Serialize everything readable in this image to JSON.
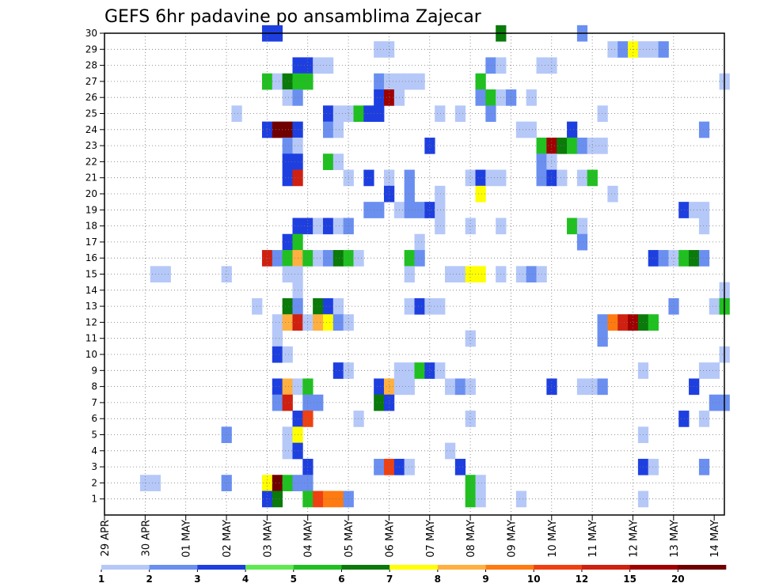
{
  "chart_data": {
    "type": "heatmap",
    "title": "GEFS 6hr padavine po ansamblima Zajecar",
    "x_tick_labels": [
      "29 APR",
      "30 APR",
      "01 MAY",
      "02 MAY",
      "03 MAY",
      "04 MAY",
      "05 MAY",
      "06 MAY",
      "07 MAY",
      "08 MAY",
      "09 MAY",
      "10 MAY",
      "11 MAY",
      "12 MAY",
      "13 MAY",
      "14 MAY"
    ],
    "y_tick_labels": [
      "1",
      "2",
      "3",
      "4",
      "5",
      "6",
      "7",
      "8",
      "9",
      "10",
      "11",
      "12",
      "13",
      "14",
      "15",
      "16",
      "17",
      "18",
      "19",
      "20",
      "21",
      "22",
      "23",
      "24",
      "25",
      "26",
      "27",
      "28",
      "29",
      "30"
    ],
    "x_range": [
      0,
      61
    ],
    "y_range": [
      0,
      30
    ],
    "grid": true,
    "legend": {
      "position": "bottom",
      "labels": [
        "1",
        "2",
        "3",
        "4",
        "5",
        "6",
        "7",
        "8",
        "9",
        "10",
        "12",
        "15",
        "20"
      ],
      "colors": [
        "#b5c8f8",
        "#6a8ff0",
        "#1e3fe0",
        "#60e850",
        "#20c020",
        "#0a7a0a",
        "#ffff00",
        "#ffb040",
        "#ff7a10",
        "#f04010",
        "#d02010",
        "#a00000",
        "#700000"
      ]
    },
    "cells": [
      [
        16,
        30,
        3
      ],
      [
        17,
        30,
        3
      ],
      [
        39,
        30,
        6
      ],
      [
        47,
        30,
        2
      ],
      [
        27,
        29,
        1
      ],
      [
        28,
        29,
        1
      ],
      [
        50,
        29,
        1
      ],
      [
        51,
        29,
        2
      ],
      [
        52,
        29,
        7
      ],
      [
        53,
        29,
        1
      ],
      [
        54,
        29,
        1
      ],
      [
        55,
        29,
        2
      ],
      [
        19,
        28,
        3
      ],
      [
        20,
        28,
        3
      ],
      [
        21,
        28,
        1
      ],
      [
        22,
        28,
        1
      ],
      [
        38,
        28,
        2
      ],
      [
        39,
        28,
        1
      ],
      [
        43,
        28,
        1
      ],
      [
        44,
        28,
        1
      ],
      [
        16,
        27,
        5
      ],
      [
        17,
        27,
        1
      ],
      [
        18,
        27,
        6
      ],
      [
        19,
        27,
        5
      ],
      [
        20,
        27,
        5
      ],
      [
        27,
        27,
        2
      ],
      [
        28,
        27,
        1
      ],
      [
        29,
        27,
        1
      ],
      [
        30,
        27,
        1
      ],
      [
        31,
        27,
        1
      ],
      [
        37,
        27,
        5
      ],
      [
        61,
        27,
        1
      ],
      [
        18,
        26,
        1
      ],
      [
        19,
        26,
        2
      ],
      [
        27,
        26,
        3
      ],
      [
        28,
        26,
        12
      ],
      [
        29,
        26,
        1
      ],
      [
        37,
        26,
        2
      ],
      [
        38,
        26,
        5
      ],
      [
        39,
        26,
        1
      ],
      [
        40,
        26,
        2
      ],
      [
        42,
        26,
        1
      ],
      [
        13,
        25,
        1
      ],
      [
        22,
        25,
        3
      ],
      [
        23,
        25,
        1
      ],
      [
        24,
        25,
        1
      ],
      [
        25,
        25,
        5
      ],
      [
        26,
        25,
        3
      ],
      [
        27,
        25,
        3
      ],
      [
        33,
        25,
        1
      ],
      [
        35,
        25,
        1
      ],
      [
        38,
        25,
        2
      ],
      [
        49,
        25,
        1
      ],
      [
        16,
        24,
        3
      ],
      [
        17,
        24,
        13
      ],
      [
        18,
        24,
        13
      ],
      [
        19,
        24,
        3
      ],
      [
        22,
        24,
        2
      ],
      [
        23,
        24,
        1
      ],
      [
        41,
        24,
        1
      ],
      [
        42,
        24,
        1
      ],
      [
        46,
        24,
        3
      ],
      [
        59,
        24,
        2
      ],
      [
        18,
        23,
        2
      ],
      [
        19,
        23,
        1
      ],
      [
        32,
        23,
        3
      ],
      [
        43,
        23,
        5
      ],
      [
        44,
        23,
        12
      ],
      [
        45,
        23,
        6
      ],
      [
        46,
        23,
        5
      ],
      [
        47,
        23,
        2
      ],
      [
        48,
        23,
        1
      ],
      [
        49,
        23,
        1
      ],
      [
        18,
        22,
        3
      ],
      [
        19,
        22,
        3
      ],
      [
        22,
        22,
        5
      ],
      [
        23,
        22,
        1
      ],
      [
        43,
        22,
        2
      ],
      [
        44,
        22,
        1
      ],
      [
        18,
        21,
        3
      ],
      [
        19,
        21,
        11
      ],
      [
        24,
        21,
        1
      ],
      [
        26,
        21,
        3
      ],
      [
        28,
        21,
        1
      ],
      [
        30,
        21,
        2
      ],
      [
        36,
        21,
        1
      ],
      [
        37,
        21,
        3
      ],
      [
        38,
        21,
        1
      ],
      [
        39,
        21,
        1
      ],
      [
        43,
        21,
        2
      ],
      [
        44,
        21,
        3
      ],
      [
        45,
        21,
        1
      ],
      [
        47,
        21,
        1
      ],
      [
        48,
        21,
        5
      ],
      [
        28,
        20,
        3
      ],
      [
        30,
        20,
        2
      ],
      [
        33,
        20,
        1
      ],
      [
        37,
        20,
        7
      ],
      [
        50,
        20,
        1
      ],
      [
        26,
        19,
        2
      ],
      [
        27,
        19,
        2
      ],
      [
        29,
        19,
        1
      ],
      [
        30,
        19,
        2
      ],
      [
        31,
        19,
        2
      ],
      [
        32,
        19,
        3
      ],
      [
        33,
        19,
        1
      ],
      [
        57,
        19,
        3
      ],
      [
        58,
        19,
        1
      ],
      [
        59,
        19,
        1
      ],
      [
        19,
        18,
        3
      ],
      [
        20,
        18,
        3
      ],
      [
        21,
        18,
        1
      ],
      [
        22,
        18,
        3
      ],
      [
        23,
        18,
        1
      ],
      [
        24,
        18,
        2
      ],
      [
        33,
        18,
        1
      ],
      [
        36,
        18,
        1
      ],
      [
        39,
        18,
        1
      ],
      [
        46,
        18,
        5
      ],
      [
        47,
        18,
        1
      ],
      [
        59,
        18,
        1
      ],
      [
        18,
        17,
        3
      ],
      [
        19,
        17,
        5
      ],
      [
        31,
        17,
        1
      ],
      [
        47,
        17,
        2
      ],
      [
        16,
        16,
        11
      ],
      [
        17,
        16,
        2
      ],
      [
        18,
        16,
        5
      ],
      [
        19,
        16,
        8
      ],
      [
        20,
        16,
        5
      ],
      [
        21,
        16,
        1
      ],
      [
        22,
        16,
        2
      ],
      [
        23,
        16,
        6
      ],
      [
        24,
        16,
        5
      ],
      [
        25,
        16,
        1
      ],
      [
        30,
        16,
        5
      ],
      [
        31,
        16,
        2
      ],
      [
        54,
        16,
        3
      ],
      [
        55,
        16,
        2
      ],
      [
        56,
        16,
        1
      ],
      [
        57,
        16,
        5
      ],
      [
        58,
        16,
        6
      ],
      [
        59,
        16,
        2
      ],
      [
        5,
        15,
        1
      ],
      [
        6,
        15,
        1
      ],
      [
        12,
        15,
        1
      ],
      [
        18,
        15,
        1
      ],
      [
        19,
        15,
        1
      ],
      [
        30,
        15,
        1
      ],
      [
        34,
        15,
        1
      ],
      [
        35,
        15,
        1
      ],
      [
        36,
        15,
        7
      ],
      [
        37,
        15,
        7
      ],
      [
        39,
        15,
        1
      ],
      [
        41,
        15,
        1
      ],
      [
        42,
        15,
        2
      ],
      [
        43,
        15,
        1
      ],
      [
        19,
        14,
        1
      ],
      [
        61,
        14,
        1
      ],
      [
        15,
        13,
        1
      ],
      [
        18,
        13,
        6
      ],
      [
        19,
        13,
        2
      ],
      [
        21,
        13,
        6
      ],
      [
        22,
        13,
        3
      ],
      [
        23,
        13,
        1
      ],
      [
        30,
        13,
        1
      ],
      [
        31,
        13,
        3
      ],
      [
        32,
        13,
        1
      ],
      [
        33,
        13,
        1
      ],
      [
        56,
        13,
        2
      ],
      [
        60,
        13,
        1
      ],
      [
        61,
        13,
        5
      ],
      [
        17,
        12,
        1
      ],
      [
        18,
        12,
        8
      ],
      [
        19,
        12,
        11
      ],
      [
        20,
        12,
        1
      ],
      [
        21,
        12,
        8
      ],
      [
        22,
        12,
        7
      ],
      [
        23,
        12,
        2
      ],
      [
        24,
        12,
        1
      ],
      [
        49,
        12,
        2
      ],
      [
        50,
        12,
        9
      ],
      [
        51,
        12,
        11
      ],
      [
        52,
        12,
        12
      ],
      [
        53,
        12,
        6
      ],
      [
        54,
        12,
        5
      ],
      [
        17,
        11,
        1
      ],
      [
        36,
        11,
        1
      ],
      [
        49,
        11,
        2
      ],
      [
        17,
        10,
        3
      ],
      [
        18,
        10,
        1
      ],
      [
        61,
        10,
        1
      ],
      [
        23,
        9,
        3
      ],
      [
        24,
        9,
        1
      ],
      [
        29,
        9,
        1
      ],
      [
        30,
        9,
        1
      ],
      [
        31,
        9,
        5
      ],
      [
        32,
        9,
        3
      ],
      [
        33,
        9,
        1
      ],
      [
        53,
        9,
        1
      ],
      [
        59,
        9,
        1
      ],
      [
        60,
        9,
        1
      ],
      [
        17,
        8,
        3
      ],
      [
        18,
        8,
        8
      ],
      [
        19,
        8,
        1
      ],
      [
        20,
        8,
        5
      ],
      [
        27,
        8,
        3
      ],
      [
        28,
        8,
        8
      ],
      [
        29,
        8,
        1
      ],
      [
        30,
        8,
        1
      ],
      [
        34,
        8,
        1
      ],
      [
        35,
        8,
        2
      ],
      [
        36,
        8,
        1
      ],
      [
        44,
        8,
        3
      ],
      [
        47,
        8,
        1
      ],
      [
        48,
        8,
        1
      ],
      [
        49,
        8,
        2
      ],
      [
        58,
        8,
        3
      ],
      [
        17,
        7,
        2
      ],
      [
        18,
        7,
        11
      ],
      [
        20,
        7,
        2
      ],
      [
        21,
        7,
        2
      ],
      [
        27,
        7,
        6
      ],
      [
        28,
        7,
        3
      ],
      [
        60,
        7,
        2
      ],
      [
        61,
        7,
        2
      ],
      [
        19,
        6,
        3
      ],
      [
        20,
        6,
        10
      ],
      [
        25,
        6,
        1
      ],
      [
        36,
        6,
        1
      ],
      [
        57,
        6,
        3
      ],
      [
        59,
        6,
        1
      ],
      [
        12,
        5,
        2
      ],
      [
        18,
        5,
        1
      ],
      [
        19,
        5,
        7
      ],
      [
        53,
        5,
        1
      ],
      [
        18,
        4,
        1
      ],
      [
        19,
        4,
        3
      ],
      [
        34,
        4,
        1
      ],
      [
        20,
        3,
        3
      ],
      [
        27,
        3,
        2
      ],
      [
        28,
        3,
        10
      ],
      [
        29,
        3,
        3
      ],
      [
        30,
        3,
        1
      ],
      [
        35,
        3,
        3
      ],
      [
        53,
        3,
        3
      ],
      [
        54,
        3,
        1
      ],
      [
        59,
        3,
        2
      ],
      [
        4,
        2,
        1
      ],
      [
        5,
        2,
        1
      ],
      [
        12,
        2,
        2
      ],
      [
        16,
        2,
        7
      ],
      [
        17,
        2,
        13
      ],
      [
        18,
        2,
        5
      ],
      [
        19,
        2,
        2
      ],
      [
        20,
        2,
        2
      ],
      [
        36,
        2,
        5
      ],
      [
        37,
        2,
        1
      ],
      [
        16,
        1,
        3
      ],
      [
        17,
        1,
        6
      ],
      [
        20,
        1,
        5
      ],
      [
        21,
        1,
        10
      ],
      [
        22,
        1,
        9
      ],
      [
        23,
        1,
        9
      ],
      [
        24,
        1,
        2
      ],
      [
        36,
        1,
        5
      ],
      [
        37,
        1,
        1
      ],
      [
        41,
        1,
        1
      ],
      [
        53,
        1,
        1
      ]
    ]
  }
}
